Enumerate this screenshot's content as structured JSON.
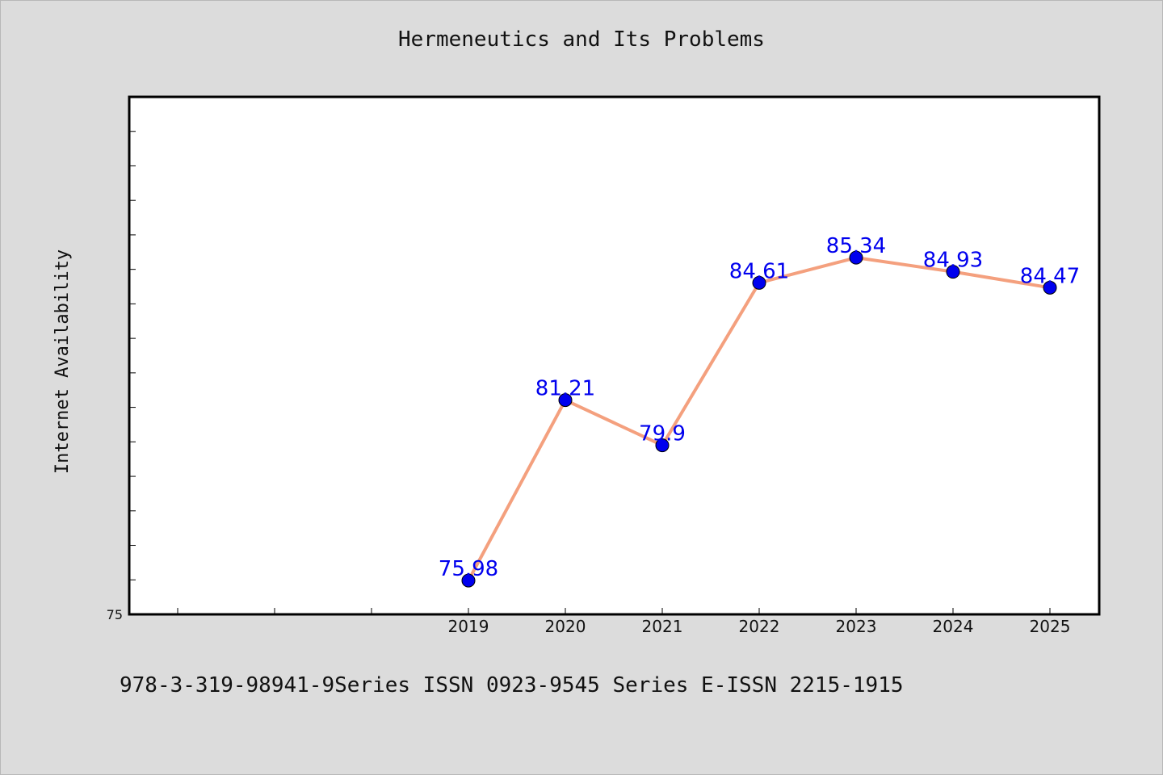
{
  "chart_data": {
    "type": "line",
    "title": "Hermeneutics and Its Problems",
    "ylabel": "Internet Availability",
    "xlabel": "",
    "categories": [
      "2019",
      "2020",
      "2021",
      "2022",
      "2023",
      "2024",
      "2025"
    ],
    "series": [
      {
        "values": [
          75.98,
          81.21,
          79.9,
          84.61,
          85.34,
          84.93,
          84.47
        ]
      }
    ],
    "data_labels": [
      "75.98",
      "81.21",
      "79.9",
      "84.61",
      "85.34",
      "84.93",
      "84.47"
    ],
    "ylim": [
      75,
      90
    ],
    "y_tick_labels": [
      "75"
    ],
    "x_extra_slots": 3,
    "grid": false,
    "line_color": "#f4a07e",
    "marker_color": "#0000ee",
    "label_color": "#0000ee"
  },
  "footer_text": "978-3-319-98941-9Series ISSN 0923-9545 Series E-ISSN 2215-1915"
}
